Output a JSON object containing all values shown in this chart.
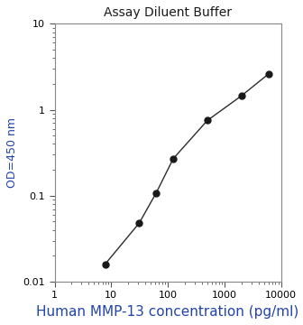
{
  "title": "Assay Diluent Buffer",
  "xlabel": "Human MMP-13 concentration (pg/ml)",
  "ylabel": "OD=450 nm",
  "x_data": [
    7.8,
    31.2,
    62.5,
    125,
    500,
    2000,
    6000
  ],
  "y_data": [
    0.016,
    0.048,
    0.108,
    0.27,
    0.75,
    1.45,
    2.6
  ],
  "xlim": [
    1,
    10000
  ],
  "ylim": [
    0.01,
    10
  ],
  "line_color": "#2c2c2c",
  "marker_color": "#1a1a1a",
  "marker_size": 5,
  "title_fontsize": 10,
  "xlabel_fontsize": 11,
  "ylabel_fontsize": 9,
  "tick_fontsize": 8,
  "title_color": "#1a1a1a",
  "xlabel_color": "#2244aa",
  "ylabel_color": "#2244aa",
  "background_color": "#ffffff"
}
